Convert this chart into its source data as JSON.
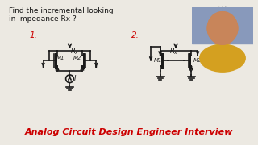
{
  "background_color": "#ece9e2",
  "title_text": "Analog Circuit Design Engineer Interview",
  "title_color": "#cc0000",
  "title_fontsize": 8.0,
  "header_text": "Find the incremental looking\nin impedance Rx ?",
  "header_fontsize": 6.5,
  "header_color": "#111111",
  "label1": "1.",
  "label1_color": "#cc0000",
  "label2": "2.",
  "label2_color": "#cc0000",
  "label_fontsize": 7.5,
  "circuit_color": "#1a1a1a",
  "lw": 1.2
}
